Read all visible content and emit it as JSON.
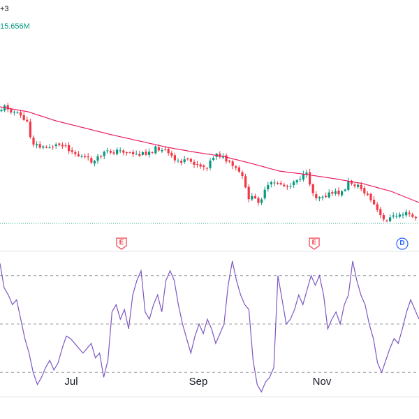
{
  "legend": {
    "count": "+3",
    "volume": "15.656M"
  },
  "colors": {
    "up": "#089981",
    "down": "#f23645",
    "ma": "#e91e63",
    "rsi": "#7e57c2",
    "dashed": "#9598a1",
    "event_earnings": "#f23645",
    "event_dividend": "#2962ff"
  },
  "chart_data": {
    "type": "candlestick",
    "x_axis_labels": [
      "Jul",
      "Sep",
      "Nov"
    ],
    "events": [
      {
        "type": "earnings",
        "label": "E"
      },
      {
        "type": "earnings",
        "label": "E"
      },
      {
        "type": "dividend",
        "label": "D"
      }
    ],
    "price_pane": {
      "moving_average": {
        "shape": "declining"
      },
      "candles_description": "downtrending daily candles from June to December"
    },
    "rsi_pane": {
      "levels": [
        70,
        50,
        30
      ],
      "ylim": [
        20,
        80
      ],
      "values": [
        75,
        65,
        62,
        58,
        60,
        52,
        44,
        38,
        30,
        25,
        28,
        32,
        35,
        31,
        34,
        40,
        45,
        44,
        42,
        40,
        38,
        40,
        42,
        36,
        38,
        28,
        35,
        55,
        58,
        52,
        56,
        48,
        62,
        68,
        72,
        55,
        52,
        58,
        62,
        55,
        68,
        72,
        68,
        58,
        50,
        44,
        38,
        45,
        50,
        46,
        52,
        48,
        42,
        46,
        50,
        66,
        76,
        68,
        62,
        58,
        56,
        35,
        25,
        22,
        26,
        28,
        32,
        70,
        60,
        50,
        52,
        56,
        62,
        58,
        64,
        70,
        66,
        70,
        62,
        48,
        52,
        55,
        50,
        58,
        62,
        76,
        68,
        62,
        58,
        50,
        44,
        34,
        30,
        35,
        40,
        44,
        42,
        48,
        55,
        60,
        56,
        52
      ]
    }
  }
}
